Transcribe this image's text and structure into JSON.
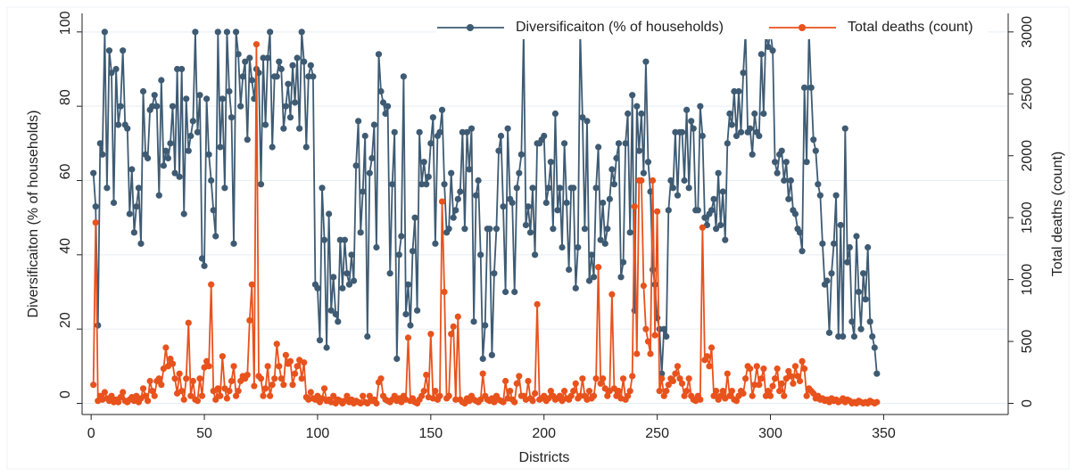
{
  "chart_data": {
    "type": "line",
    "x_label": "Districts",
    "y_label": "Diversificaiton (% of households)",
    "y2_label": "Total deaths (count)",
    "xlim": [
      -4,
      405
    ],
    "xticks": [
      0,
      50,
      100,
      150,
      200,
      250,
      300,
      350
    ],
    "ylim": [
      -3,
      105
    ],
    "yticks": [
      0,
      20,
      40,
      60,
      80,
      100
    ],
    "y2lim": [
      -90,
      3150
    ],
    "y2ticks": [
      0,
      500,
      1000,
      1500,
      2000,
      2500,
      3000
    ],
    "grid": true,
    "legend": "top-right",
    "x": [
      1,
      2,
      3,
      4,
      5,
      6,
      7,
      8,
      9,
      10,
      11,
      12,
      13,
      14,
      15,
      16,
      17,
      18,
      19,
      20,
      21,
      22,
      23,
      24,
      25,
      26,
      27,
      28,
      29,
      30,
      31,
      32,
      33,
      34,
      35,
      36,
      37,
      38,
      39,
      40,
      41,
      42,
      43,
      44,
      45,
      46,
      47,
      48,
      49,
      50,
      51,
      52,
      53,
      54,
      55,
      56,
      57,
      58,
      59,
      60,
      61,
      62,
      63,
      64,
      65,
      66,
      67,
      68,
      69,
      70,
      71,
      72,
      73,
      74,
      75,
      76,
      77,
      78,
      79,
      80,
      81,
      82,
      83,
      84,
      85,
      86,
      87,
      88,
      89,
      90,
      91,
      92,
      93,
      94,
      95,
      96,
      97,
      98,
      99,
      100,
      101,
      102,
      103,
      104,
      105,
      106,
      107,
      108,
      109,
      110,
      111,
      112,
      113,
      114,
      115,
      116,
      117,
      118,
      119,
      120,
      121,
      122,
      123,
      124,
      125,
      126,
      127,
      128,
      129,
      130,
      131,
      132,
      133,
      134,
      135,
      136,
      137,
      138,
      139,
      140,
      141,
      142,
      143,
      144,
      145,
      146,
      147,
      148,
      149,
      150,
      151,
      152,
      153,
      154,
      155,
      156,
      157,
      158,
      159,
      160,
      161,
      162,
      163,
      164,
      165,
      166,
      167,
      168,
      169,
      170,
      171,
      172,
      173,
      174,
      175,
      176,
      177,
      178,
      179,
      180,
      181,
      182,
      183,
      184,
      185,
      186,
      187,
      188,
      189,
      190,
      191,
      192,
      193,
      194,
      195,
      196,
      197,
      198,
      199,
      200,
      201,
      202,
      203,
      204,
      205,
      206,
      207,
      208,
      209,
      210,
      211,
      212,
      213,
      214,
      215,
      216,
      217,
      218,
      219,
      220,
      221,
      222,
      223,
      224,
      225,
      226,
      227,
      228,
      229,
      230,
      231,
      232,
      233,
      234,
      235,
      236,
      237,
      238,
      239,
      240,
      241,
      242,
      243,
      244,
      245,
      246,
      247,
      248,
      249,
      250,
      251,
      252,
      253,
      254,
      255,
      256,
      257,
      258,
      259,
      260,
      261,
      262,
      263,
      264,
      265,
      266,
      267,
      268,
      269,
      270,
      271,
      272,
      273,
      274,
      275,
      276,
      277,
      278,
      279,
      280,
      281,
      282,
      283,
      284,
      285,
      286,
      287,
      288,
      289,
      290,
      291,
      292,
      293,
      294,
      295,
      296,
      297,
      298,
      299,
      300,
      301,
      302,
      303,
      304,
      305,
      306,
      307,
      308,
      309,
      310,
      311,
      312,
      313,
      314,
      315,
      316,
      317,
      318,
      319,
      320,
      321,
      322,
      323,
      324,
      325,
      326,
      327,
      328,
      329,
      330,
      331,
      332,
      333,
      334,
      335,
      336,
      337,
      338,
      339,
      340,
      341,
      342,
      343,
      344,
      345,
      346,
      347
    ],
    "series": [
      {
        "name": "Diversificaiton (% of households)",
        "color": "#3e5b73",
        "axis": "y",
        "values": [
          62,
          53,
          21,
          70,
          67,
          100,
          58,
          95,
          89,
          54,
          90,
          75,
          80,
          95,
          75,
          74,
          51,
          63,
          46,
          53,
          58,
          43,
          84,
          67,
          66,
          79,
          80,
          83,
          80,
          56,
          87,
          64,
          68,
          66,
          70,
          80,
          62,
          90,
          61,
          90,
          51,
          82,
          68,
          72,
          76,
          100,
          73,
          83,
          39,
          37,
          82,
          67,
          60,
          52,
          45,
          100,
          69,
          82,
          58,
          100,
          84,
          77,
          43,
          100,
          94,
          80,
          88,
          92,
          71,
          93,
          87,
          82,
          90,
          89,
          59,
          93,
          75,
          93,
          100,
          69,
          88,
          88,
          92,
          90,
          74,
          80,
          86,
          77,
          91,
          81,
          93,
          74,
          100,
          92,
          69,
          88,
          91,
          88,
          32,
          31,
          17,
          58,
          44,
          15,
          51,
          25,
          34,
          24,
          22,
          44,
          31,
          44,
          35,
          32,
          40,
          33,
          64,
          76,
          46,
          57,
          72,
          18,
          62,
          66,
          75,
          42,
          94,
          84,
          81,
          78,
          80,
          35,
          59,
          73,
          12,
          40,
          45,
          88,
          24,
          32,
          21,
          41,
          50,
          25,
          73,
          59,
          65,
          59,
          61,
          70,
          77,
          43,
          72,
          73,
          79,
          59,
          46,
          47,
          62,
          50,
          52,
          55,
          57,
          73,
          47,
          73,
          63,
          74,
          22,
          56,
          60,
          40,
          12,
          21,
          47,
          47,
          13,
          35,
          47,
          68,
          72,
          53,
          30,
          74,
          55,
          54,
          30,
          58,
          62,
          67,
          100,
          48,
          53,
          46,
          58,
          40,
          70,
          70,
          71,
          72,
          54,
          58,
          65,
          47,
          78,
          52,
          58,
          42,
          70,
          54,
          36,
          58,
          58,
          31,
          42,
          100,
          77,
          47,
          76,
          33,
          40,
          34,
          58,
          69,
          44,
          54,
          43,
          47,
          55,
          63,
          59,
          66,
          70,
          34,
          38,
          70,
          78,
          46,
          83,
          25,
          80,
          68,
          78,
          62,
          92,
          65,
          57,
          36,
          32,
          23,
          20,
          8,
          20,
          18,
          52,
          60,
          58,
          73,
          56,
          73,
          73,
          60,
          79,
          58,
          76,
          74,
          52,
          52,
          80,
          72,
          50,
          48,
          51,
          52,
          55,
          47,
          62,
          48,
          57,
          44,
          70,
          78,
          75,
          84,
          72,
          84,
          73,
          89,
          100,
          73,
          74,
          67,
          78,
          73,
          72,
          94,
          78,
          100,
          96,
          100,
          95,
          65,
          62,
          67,
          68,
          60,
          65,
          55,
          60,
          52,
          51,
          47,
          46,
          41,
          85,
          65,
          100,
          85,
          71,
          68,
          59,
          56,
          43,
          32,
          33,
          19,
          35,
          43,
          56,
          18,
          48,
          18,
          74,
          38,
          42,
          22,
          18,
          45,
          30,
          20,
          35,
          28,
          42,
          22,
          18,
          15,
          8
        ]
      },
      {
        "name": "Total deaths (count)",
        "color": "#e8521c",
        "axis": "y2",
        "values": [
          150,
          1460,
          20,
          60,
          30,
          90,
          40,
          20,
          60,
          10,
          30,
          10,
          50,
          90,
          20,
          10,
          30,
          50,
          20,
          60,
          10,
          40,
          120,
          60,
          20,
          180,
          100,
          60,
          180,
          200,
          150,
          280,
          450,
          300,
          360,
          320,
          200,
          80,
          240,
          100,
          30,
          200,
          650,
          60,
          180,
          30,
          20,
          200,
          60,
          290,
          340,
          300,
          960,
          100,
          30,
          120,
          60,
          380,
          120,
          40,
          100,
          180,
          300,
          60,
          100,
          180,
          220,
          200,
          230,
          670,
          960,
          140,
          2900,
          220,
          200,
          60,
          120,
          300,
          60,
          150,
          200,
          480,
          300,
          200,
          150,
          390,
          320,
          340,
          150,
          240,
          300,
          350,
          200,
          330,
          50,
          30,
          90,
          40,
          30,
          60,
          10,
          40,
          120,
          20,
          30,
          10,
          60,
          0,
          30,
          20,
          0,
          20,
          60,
          10,
          30,
          0,
          20,
          10,
          0,
          60,
          10,
          0,
          60,
          20,
          30,
          0,
          170,
          200,
          60,
          30,
          20,
          10,
          30,
          60,
          20,
          40,
          10,
          60,
          30,
          530,
          20,
          40,
          10,
          0,
          30,
          60,
          100,
          230,
          50,
          560,
          40,
          100,
          30,
          60,
          1630,
          900,
          40,
          60,
          560,
          620,
          30,
          700,
          30,
          10,
          0,
          40,
          20,
          60,
          30,
          20,
          10,
          30,
          240,
          60,
          30,
          20,
          40,
          10,
          60,
          30,
          20,
          10,
          180,
          40,
          100,
          30,
          10,
          160,
          220,
          60,
          60,
          30,
          180,
          40,
          20,
          80,
          800,
          30,
          40,
          60,
          20,
          40,
          100,
          60,
          30,
          40,
          60,
          20,
          100,
          40,
          30,
          60,
          100,
          160,
          40,
          60,
          200,
          60,
          30,
          100,
          40,
          60,
          200,
          1100,
          160,
          200,
          120,
          60,
          100,
          880,
          120,
          60,
          100,
          40,
          200,
          30,
          60,
          100,
          220,
          1590,
          400,
          1800,
          1800,
          950,
          600,
          500,
          400,
          1800,
          550,
          1550,
          100,
          200,
          60,
          100,
          150,
          200,
          180,
          240,
          300,
          200,
          160,
          60,
          100,
          200,
          60,
          30,
          20,
          60,
          30,
          1420,
          350,
          380,
          300,
          450,
          60,
          100,
          30,
          60,
          100,
          40,
          240,
          60,
          100,
          30,
          20,
          60,
          100,
          80,
          200,
          300,
          280,
          60,
          150,
          300,
          150,
          200,
          280,
          60,
          100,
          60,
          140,
          200,
          280,
          100,
          160,
          60,
          200,
          260,
          220,
          160,
          300,
          220,
          180,
          340,
          280,
          60,
          120,
          100,
          80,
          40,
          60,
          30,
          40,
          20,
          30,
          10,
          40,
          20,
          30,
          10,
          20,
          40,
          10,
          30,
          20,
          0,
          10,
          0,
          20,
          10,
          0,
          10,
          0,
          20,
          10,
          0,
          10
        ]
      }
    ]
  }
}
